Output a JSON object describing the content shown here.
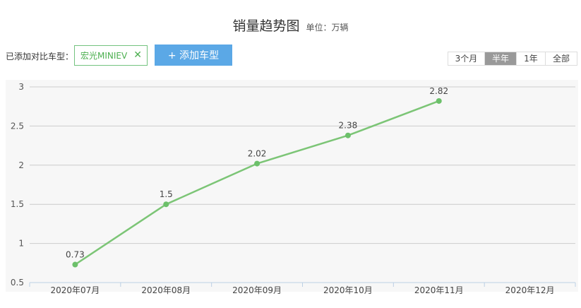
{
  "header": {
    "title": "销量趋势图",
    "unit": "单位：万辆"
  },
  "compare": {
    "label": "已添加对比车型：",
    "tag": "宏光MINIEV",
    "tag_close": "✕",
    "add_button": "+ 添加车型"
  },
  "range": {
    "options": [
      "3个月",
      "半年",
      "1年",
      "全部"
    ],
    "selected": "半年"
  },
  "chart_data": {
    "type": "line",
    "categories": [
      "2020年07月",
      "2020年08月",
      "2020年09月",
      "2020年10月",
      "2020年11月",
      "2020年12月"
    ],
    "series": [
      {
        "values": [
          0.73,
          1.5,
          2.02,
          2.38,
          2.82,
          null
        ]
      }
    ],
    "data_labels": [
      "0.73",
      "1.5",
      "2.02",
      "2.38",
      "2.82"
    ],
    "ylim": [
      0.5,
      3
    ],
    "yticks": [
      "0.5",
      "1",
      "1.5",
      "2",
      "2.5",
      "3"
    ],
    "grid": true,
    "colors": {
      "line": "#7cc576",
      "point": "#6cc06a",
      "grid": "#cccccc",
      "plot_bg": "#f7f7f7",
      "axis": "#bcd0e4"
    }
  }
}
